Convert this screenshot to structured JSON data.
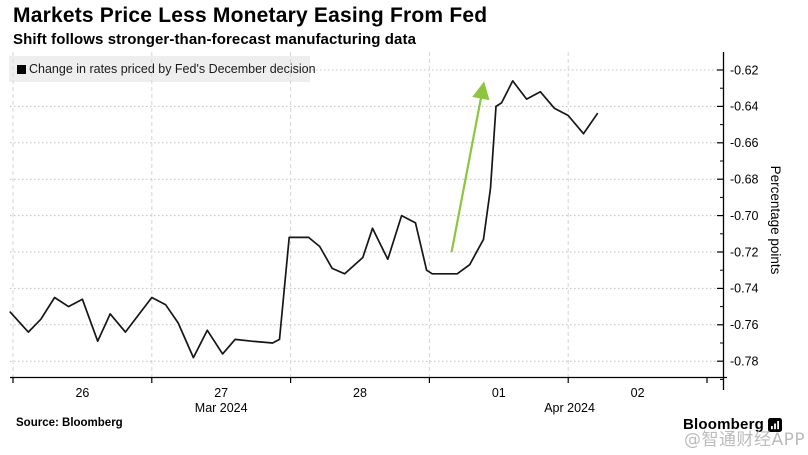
{
  "header": {
    "title": "Markets Price Less Monetary Easing From Fed",
    "subtitle": "Shift follows stronger-than-forecast manufacturing data"
  },
  "legend": {
    "label": "Change in rates priced by Fed's December decision",
    "marker_color": "#000000"
  },
  "footer": {
    "source": "Source: Bloomberg",
    "brand": "Bloomberg",
    "watermark": "@智通财经APP"
  },
  "colors": {
    "series_line": "#161616",
    "arrow_green": "#8CC63E",
    "h_grid": "#bfbfbf",
    "v_grid": "#d6d6d6",
    "axis": "#000000",
    "legend_bg": "#eeeeee"
  },
  "chart_data": {
    "type": "line",
    "title": "Markets Price Less Monetary Easing From Fed",
    "subtitle": "Shift follows stronger-than-forecast manufacturing data",
    "xlabel": "",
    "ylabel": "Percentage points",
    "ylim": [
      -0.79,
      -0.61
    ],
    "grid": true,
    "legend_position": "top-left",
    "y_axis_side": "right",
    "y_ticks": [
      {
        "v": -0.62,
        "label": "-0.62"
      },
      {
        "v": -0.64,
        "label": "-0.64"
      },
      {
        "v": -0.66,
        "label": "-0.66"
      },
      {
        "v": -0.68,
        "label": "-0.68"
      },
      {
        "v": -0.7,
        "label": "-0.70"
      },
      {
        "v": -0.72,
        "label": "-0.72"
      },
      {
        "v": -0.74,
        "label": "-0.74"
      },
      {
        "v": -0.76,
        "label": "-0.76"
      },
      {
        "v": -0.78,
        "label": "-0.78"
      }
    ],
    "y_minor_ticks": [
      -0.63,
      -0.65,
      -0.67,
      -0.69,
      -0.71,
      -0.73,
      -0.75,
      -0.77,
      -0.79
    ],
    "x_axis": {
      "unit": "trading-day index (0 = start of Mar 26 2024)",
      "boundaries": [
        0,
        1,
        2,
        3,
        4,
        5
      ],
      "gridline_boundaries": [
        0,
        1,
        2,
        3,
        4
      ],
      "day_labels": [
        {
          "d": 0.5,
          "label": "26"
        },
        {
          "d": 1.5,
          "label": "27"
        },
        {
          "d": 2.5,
          "label": "28"
        },
        {
          "d": 3.5,
          "label": "01"
        },
        {
          "d": 4.5,
          "label": "02"
        }
      ],
      "month_labels": [
        {
          "d": 1.5,
          "label": "Mar 2024"
        },
        {
          "d": 4.01,
          "label": "Apr 2024"
        }
      ]
    },
    "series": [
      {
        "name": "Change in rates priced by Fed's December decision",
        "color": "#161616",
        "points": [
          [
            -0.02,
            -0.753
          ],
          [
            0.11,
            -0.764
          ],
          [
            0.2,
            -0.757
          ],
          [
            0.3,
            -0.745
          ],
          [
            0.4,
            -0.75
          ],
          [
            0.5,
            -0.746
          ],
          [
            0.61,
            -0.769
          ],
          [
            0.7,
            -0.754
          ],
          [
            0.81,
            -0.764
          ],
          [
            1.0,
            -0.745
          ],
          [
            1.1,
            -0.749
          ],
          [
            1.19,
            -0.759
          ],
          [
            1.3,
            -0.778
          ],
          [
            1.4,
            -0.763
          ],
          [
            1.51,
            -0.776
          ],
          [
            1.6,
            -0.768
          ],
          [
            1.72,
            -0.769
          ],
          [
            1.87,
            -0.77
          ],
          [
            1.92,
            -0.768
          ],
          [
            1.99,
            -0.712
          ],
          [
            2.13,
            -0.712
          ],
          [
            2.21,
            -0.717
          ],
          [
            2.3,
            -0.729
          ],
          [
            2.39,
            -0.732
          ],
          [
            2.52,
            -0.723
          ],
          [
            2.59,
            -0.707
          ],
          [
            2.7,
            -0.724
          ],
          [
            2.8,
            -0.7
          ],
          [
            2.9,
            -0.704
          ],
          [
            2.98,
            -0.73
          ],
          [
            3.02,
            -0.732
          ],
          [
            3.2,
            -0.732
          ],
          [
            3.29,
            -0.727
          ],
          [
            3.39,
            -0.713
          ],
          [
            3.44,
            -0.685
          ],
          [
            3.48,
            -0.64
          ],
          [
            3.52,
            -0.638
          ],
          [
            3.6,
            -0.626
          ],
          [
            3.7,
            -0.636
          ],
          [
            3.8,
            -0.632
          ],
          [
            3.9,
            -0.641
          ],
          [
            4.0,
            -0.645
          ],
          [
            4.11,
            -0.655
          ],
          [
            4.21,
            -0.644
          ]
        ]
      }
    ],
    "annotations": [
      {
        "type": "arrow",
        "color": "#8CC63E",
        "from": [
          3.16,
          -0.72
        ],
        "to": [
          3.39,
          -0.628
        ]
      }
    ]
  }
}
